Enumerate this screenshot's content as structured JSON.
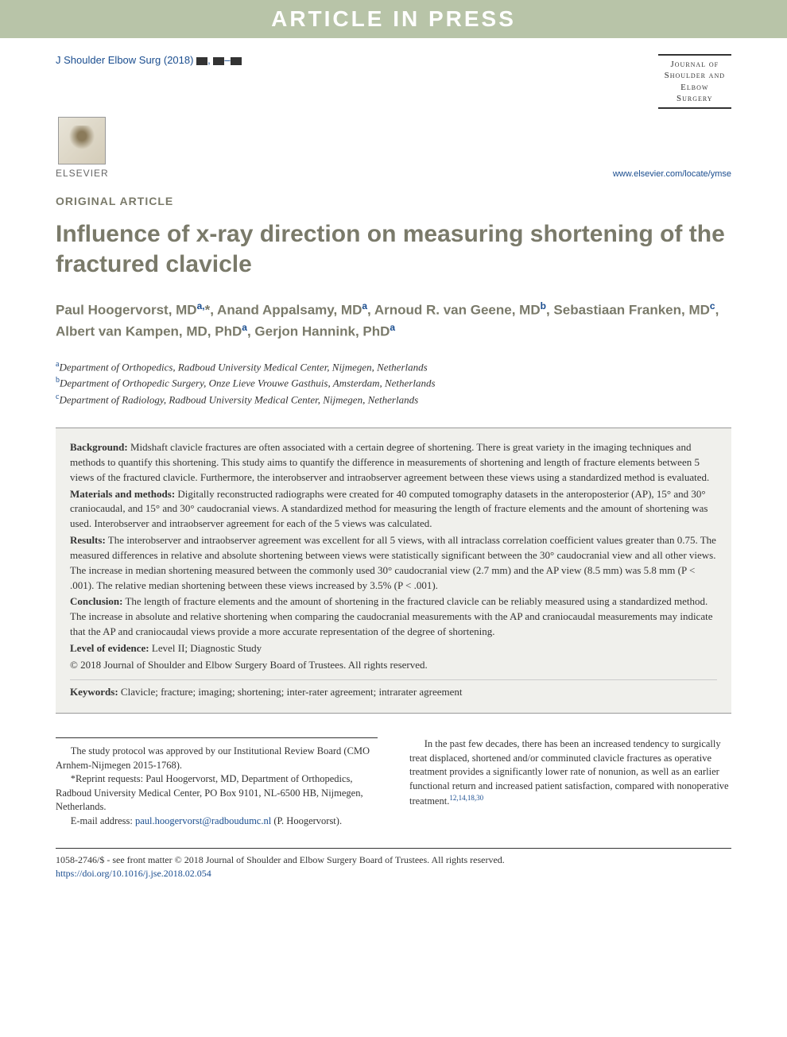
{
  "banner": "ARTICLE IN PRESS",
  "citation": {
    "journal_abbrev": "J Shoulder Elbow Surg",
    "year": "(2018)"
  },
  "journal_name_lines": [
    "Journal of",
    "Shoulder and",
    "Elbow",
    "Surgery"
  ],
  "publisher_name": "ELSEVIER",
  "journal_url": "www.elsevier.com/locate/ymse",
  "article_type": "ORIGINAL ARTICLE",
  "title": "Influence of x-ray direction on measuring shortening of the fractured clavicle",
  "authors_html": "Paul Hoogervorst, MD<sup>a,</sup>*, Anand Appalsamy, MD<sup>a</sup>, Arnoud R. van Geene, MD<sup>b</sup>, Sebastiaan Franken, MD<sup>c</sup>, Albert van Kampen, MD, PhD<sup>a</sup>, Gerjon Hannink, PhD<sup>a</sup>",
  "affiliations": [
    {
      "sup": "a",
      "text": "Department of Orthopedics, Radboud University Medical Center, Nijmegen, Netherlands"
    },
    {
      "sup": "b",
      "text": "Department of Orthopedic Surgery, Onze Lieve Vrouwe Gasthuis, Amsterdam, Netherlands"
    },
    {
      "sup": "c",
      "text": "Department of Radiology, Radboud University Medical Center, Nijmegen, Netherlands"
    }
  ],
  "abstract": {
    "background_label": "Background:",
    "background": "Midshaft clavicle fractures are often associated with a certain degree of shortening. There is great variety in the imaging techniques and methods to quantify this shortening. This study aims to quantify the difference in measurements of shortening and length of fracture elements between 5 views of the fractured clavicle. Furthermore, the interobserver and intraobserver agreement between these views using a standardized method is evaluated.",
    "methods_label": "Materials and methods:",
    "methods": "Digitally reconstructed radiographs were created for 40 computed tomography datasets in the anteroposterior (AP), 15° and 30° craniocaudal, and 15° and 30° caudocranial views. A standardized method for measuring the length of fracture elements and the amount of shortening was used. Interobserver and intraobserver agreement for each of the 5 views was calculated.",
    "results_label": "Results:",
    "results": "The interobserver and intraobserver agreement was excellent for all 5 views, with all intraclass correlation coefficient values greater than 0.75. The measured differences in relative and absolute shortening between views were statistically significant between the 30° caudocranial view and all other views. The increase in median shortening measured between the commonly used 30° caudocranial view (2.7 mm) and the AP view (8.5 mm) was 5.8 mm (P < .001). The relative median shortening between these views increased by 3.5% (P < .001).",
    "conclusion_label": "Conclusion:",
    "conclusion": "The length of fracture elements and the amount of shortening in the fractured clavicle can be reliably measured using a standardized method. The increase in absolute and relative shortening when comparing the caudocranial measurements with the AP and craniocaudal measurements may indicate that the AP and craniocaudal views provide a more accurate representation of the degree of shortening.",
    "level_label": "Level of evidence:",
    "level": "Level II; Diagnostic Study",
    "copyright": "© 2018 Journal of Shoulder and Elbow Surgery Board of Trustees. All rights reserved.",
    "keywords_label": "Keywords:",
    "keywords": "Clavicle; fracture; imaging; shortening; inter-rater agreement; intrarater agreement"
  },
  "footnotes": {
    "irb": "The study protocol was approved by our Institutional Review Board (CMO Arnhem-Nijmegen 2015-1768).",
    "reprint_label": "*Reprint requests:",
    "reprint": "Paul Hoogervorst, MD, Department of Orthopedics, Radboud University Medical Center, PO Box 9101, NL-6500 HB, Nijmegen, Netherlands.",
    "email_label": "E-mail address:",
    "email": "paul.hoogervorst@radboudumc.nl",
    "email_author": "(P. Hoogervorst)."
  },
  "intro_paragraph": "In the past few decades, there has been an increased tendency to surgically treat displaced, shortened and/or comminuted clavicle fractures as operative treatment provides a significantly lower rate of nonunion, as well as an earlier functional return and increased patient satisfaction, compared with nonoperative treatment.",
  "intro_refs": "12,14,18,30",
  "footer": {
    "issn_line": "1058-2746/$ - see front matter © 2018 Journal of Shoulder and Elbow Surgery Board of Trustees. All rights reserved.",
    "doi": "https://doi.org/10.1016/j.jse.2018.02.054"
  },
  "colors": {
    "banner_bg": "#b8c4a8",
    "link": "#1a4d8f",
    "heading": "#7a7a6a",
    "abstract_bg": "#f0f0ec"
  }
}
